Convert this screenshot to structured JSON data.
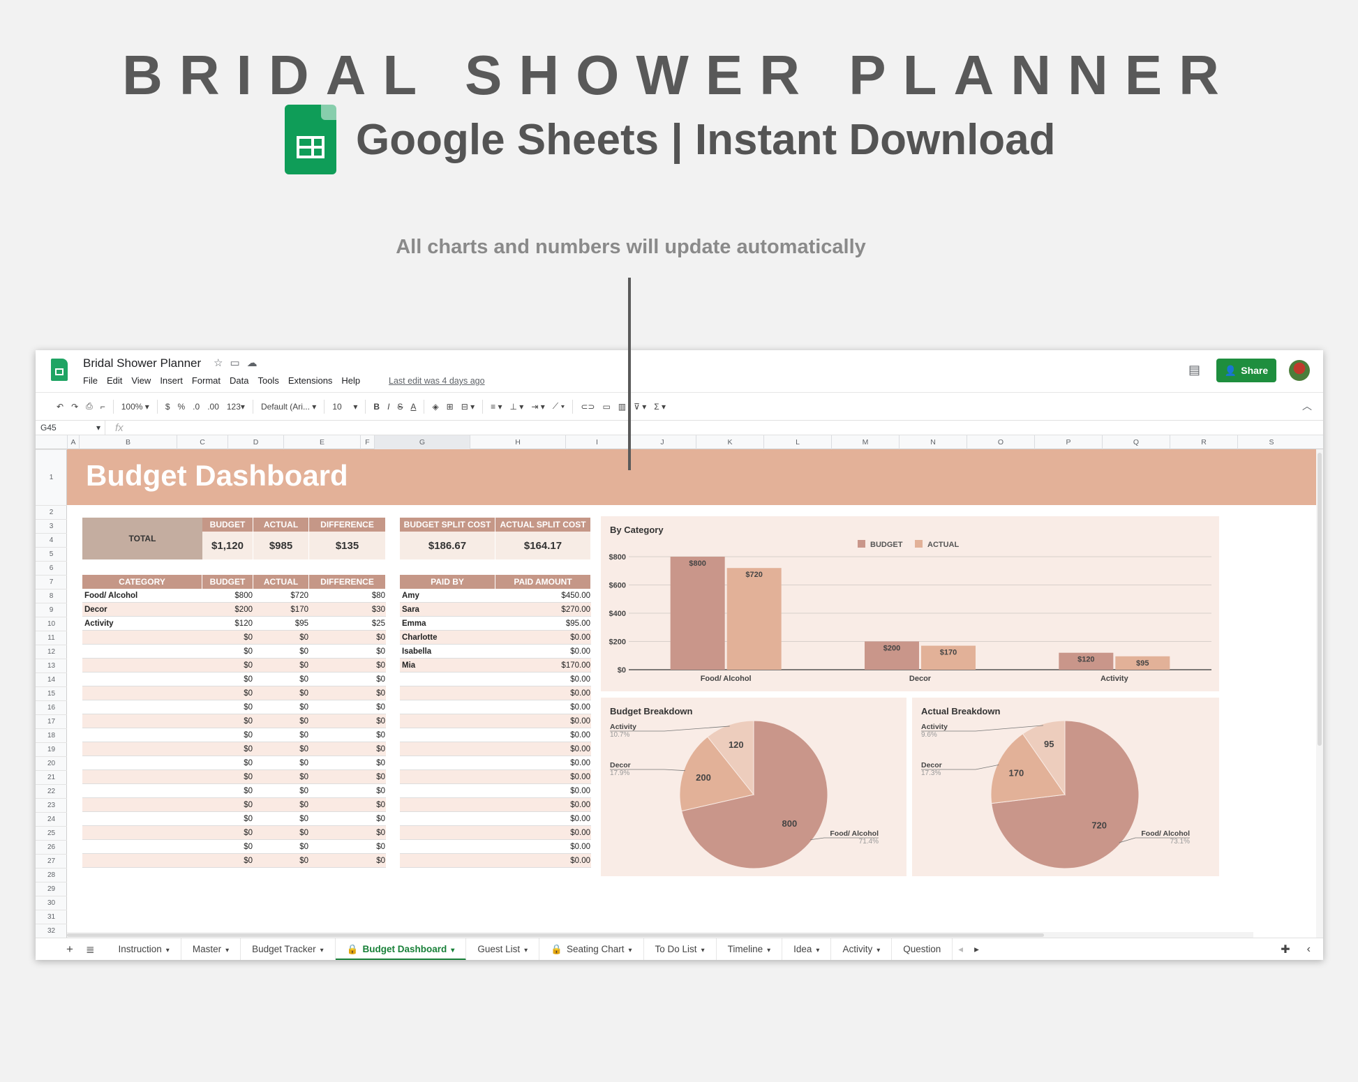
{
  "promo": {
    "title": "BRIDAL SHOWER PLANNER",
    "subtitle": "Google Sheets | Instant Download",
    "note": "All charts and numbers will update automatically"
  },
  "app": {
    "doc_title": "Bridal Shower Planner",
    "menu": [
      "File",
      "Edit",
      "View",
      "Insert",
      "Format",
      "Data",
      "Tools",
      "Extensions",
      "Help"
    ],
    "last_edit": "Last edit was 4 days ago",
    "share_label": "Share"
  },
  "toolbar": {
    "zoom": "100%",
    "currency": "$",
    "percent": "%",
    "dec_less": ".0",
    "dec_more": ".00",
    "format_more": "123",
    "font": "Default (Ari...",
    "font_size": "10"
  },
  "formula": {
    "cell_ref": "G45",
    "fx": "fx"
  },
  "columns": [
    "A",
    "B",
    "C",
    "D",
    "E",
    "F",
    "G",
    "H",
    "I",
    "J",
    "K",
    "L",
    "M",
    "N",
    "O",
    "P",
    "Q",
    "R",
    "S"
  ],
  "rows": [
    "1",
    "2",
    "3",
    "4",
    "5",
    "6",
    "7",
    "8",
    "9",
    "10",
    "11",
    "12",
    "13",
    "14",
    "15",
    "16",
    "17",
    "18",
    "19",
    "20",
    "21",
    "22",
    "23",
    "24",
    "25",
    "26",
    "27",
    "28",
    "29",
    "30",
    "31",
    "32"
  ],
  "dashboard": {
    "title": "Budget Dashboard",
    "summary": {
      "total_label": "TOTAL",
      "budget_label": "BUDGET",
      "actual_label": "ACTUAL",
      "difference_label": "DIFFERENCE",
      "budget": "$1,120",
      "actual": "$985",
      "difference": "$135",
      "budget_split_label": "BUDGET SPLIT COST",
      "actual_split_label": "ACTUAL SPLIT COST",
      "budget_split": "$186.67",
      "actual_split": "$164.17"
    },
    "category_table": {
      "headers": [
        "CATEGORY",
        "BUDGET",
        "ACTUAL",
        "DIFFERENCE"
      ],
      "rows": [
        [
          "Food/ Alcohol",
          "$800",
          "$720",
          "$80"
        ],
        [
          "Decor",
          "$200",
          "$170",
          "$30"
        ],
        [
          "Activity",
          "$120",
          "$95",
          "$25"
        ],
        [
          "",
          "$0",
          "$0",
          "$0"
        ],
        [
          "",
          "$0",
          "$0",
          "$0"
        ],
        [
          "",
          "$0",
          "$0",
          "$0"
        ],
        [
          "",
          "$0",
          "$0",
          "$0"
        ],
        [
          "",
          "$0",
          "$0",
          "$0"
        ],
        [
          "",
          "$0",
          "$0",
          "$0"
        ],
        [
          "",
          "$0",
          "$0",
          "$0"
        ],
        [
          "",
          "$0",
          "$0",
          "$0"
        ],
        [
          "",
          "$0",
          "$0",
          "$0"
        ],
        [
          "",
          "$0",
          "$0",
          "$0"
        ],
        [
          "",
          "$0",
          "$0",
          "$0"
        ],
        [
          "",
          "$0",
          "$0",
          "$0"
        ],
        [
          "",
          "$0",
          "$0",
          "$0"
        ],
        [
          "",
          "$0",
          "$0",
          "$0"
        ],
        [
          "",
          "$0",
          "$0",
          "$0"
        ],
        [
          "",
          "$0",
          "$0",
          "$0"
        ],
        [
          "",
          "$0",
          "$0",
          "$0"
        ]
      ]
    },
    "paid_table": {
      "headers": [
        "PAID BY",
        "PAID AMOUNT"
      ],
      "rows": [
        [
          "Amy",
          "$450.00"
        ],
        [
          "Sara",
          "$270.00"
        ],
        [
          "Emma",
          "$95.00"
        ],
        [
          "Charlotte",
          "$0.00"
        ],
        [
          "Isabella",
          "$0.00"
        ],
        [
          "Mia",
          "$170.00"
        ],
        [
          "",
          "$0.00"
        ],
        [
          "",
          "$0.00"
        ],
        [
          "",
          "$0.00"
        ],
        [
          "",
          "$0.00"
        ],
        [
          "",
          "$0.00"
        ],
        [
          "",
          "$0.00"
        ],
        [
          "",
          "$0.00"
        ],
        [
          "",
          "$0.00"
        ],
        [
          "",
          "$0.00"
        ],
        [
          "",
          "$0.00"
        ],
        [
          "",
          "$0.00"
        ],
        [
          "",
          "$0.00"
        ],
        [
          "",
          "$0.00"
        ],
        [
          "",
          "$0.00"
        ]
      ]
    }
  },
  "chart_data": [
    {
      "type": "bar",
      "title": "By Category",
      "categories": [
        "Food/ Alcohol",
        "Decor",
        "Activity"
      ],
      "series": [
        {
          "name": "BUDGET",
          "values": [
            800,
            200,
            120
          ],
          "labels": [
            "$800",
            "$200",
            "$120"
          ],
          "color": "#c9968a"
        },
        {
          "name": "ACTUAL",
          "values": [
            720,
            170,
            95
          ],
          "labels": [
            "$720",
            "$170",
            "$95"
          ],
          "color": "#e2b198"
        }
      ],
      "ylim": [
        0,
        800
      ],
      "yticks": [
        "$0",
        "$200",
        "$400",
        "$600",
        "$800"
      ],
      "legend": "top"
    },
    {
      "type": "pie",
      "title": "Budget Breakdown",
      "slices": [
        {
          "label": "Food/ Alcohol",
          "value": 800,
          "pct": "71.4%",
          "color": "#c9968a"
        },
        {
          "label": "Decor",
          "value": 200,
          "pct": "17.9%",
          "color": "#e2b198"
        },
        {
          "label": "Activity",
          "value": 120,
          "pct": "10.7%",
          "color": "#edcdbd"
        }
      ]
    },
    {
      "type": "pie",
      "title": "Actual Breakdown",
      "slices": [
        {
          "label": "Food/ Alcohol",
          "value": 720,
          "pct": "73.1%",
          "color": "#c9968a"
        },
        {
          "label": "Decor",
          "value": 170,
          "pct": "17.3%",
          "color": "#e2b198"
        },
        {
          "label": "Activity",
          "value": 95,
          "pct": "9.6%",
          "color": "#edcdbd"
        }
      ]
    }
  ],
  "tabs": [
    "Instruction",
    "Master",
    "Budget Tracker",
    "Budget Dashboard",
    "Guest List",
    "Seating Chart",
    "To Do List",
    "Timeline",
    "Idea",
    "Activity",
    "Question"
  ],
  "active_tab": "Budget Dashboard"
}
